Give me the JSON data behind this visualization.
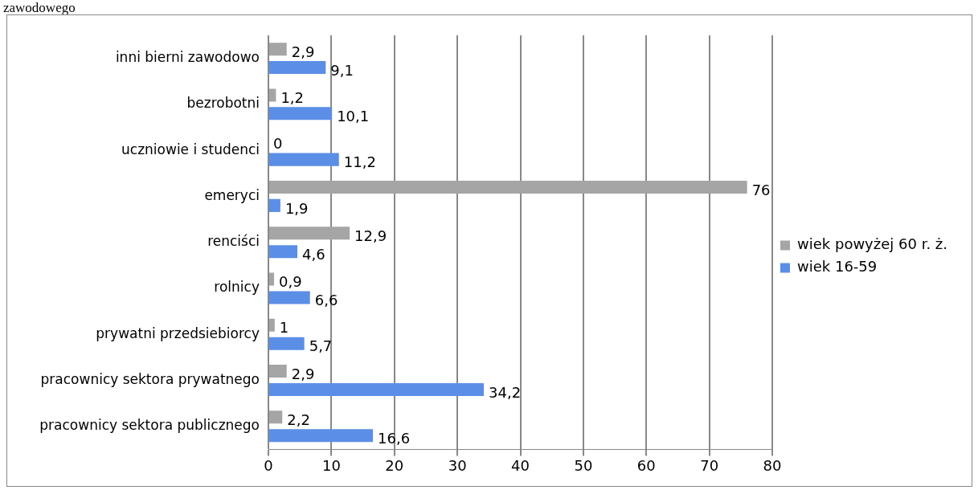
{
  "chart_data": {
    "type": "bar",
    "orientation": "horizontal",
    "categories": [
      "inni bierni zawodowo",
      "bezrobotni",
      "uczniowie i studenci",
      "emeryci",
      "renciści",
      "rolnicy",
      "prywatni przedsiebiorcy",
      "pracownicy sektora prywatnego",
      "pracownicy sektora publicznego"
    ],
    "series": [
      {
        "name": "wiek powyżej 60 r. ż.",
        "color": "#a5a5a5",
        "values": [
          2.9,
          1.2,
          0,
          76,
          12.9,
          0.9,
          1,
          2.9,
          2.2
        ],
        "value_labels": [
          "2,9",
          "1,2",
          "0",
          "76",
          "12,9",
          "0,9",
          "1",
          "2,9",
          "2,2"
        ]
      },
      {
        "name": "wiek 16-59",
        "color": "#5b8ee6",
        "values": [
          9.1,
          10.1,
          11.2,
          1.9,
          4.6,
          6.6,
          5.7,
          34.2,
          16.6
        ],
        "value_labels": [
          "9,1",
          "10,1",
          "11,2",
          "1,9",
          "4,6",
          "6,6",
          "5,7",
          "34,2",
          "16,6"
        ]
      }
    ],
    "xlim": [
      0,
      80
    ],
    "xticks": [
      0,
      10,
      20,
      30,
      40,
      50,
      60,
      70,
      80
    ],
    "grid": "x",
    "legend": "right",
    "annotations": [
      "zawodowego"
    ]
  }
}
